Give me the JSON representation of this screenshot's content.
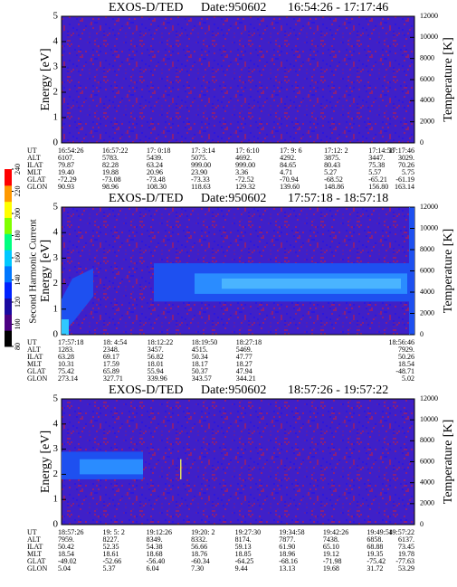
{
  "chart_data": [
    {
      "type": "spectrogram",
      "title": "EXOS-D/TED",
      "date": "Date:950602",
      "time_range": "16:54:26 - 17:17:46",
      "ylabel": "Energy [eV]",
      "y2label": "Temperature [K]",
      "ylim": [
        0,
        5
      ],
      "yticks": [
        0,
        1,
        2,
        3,
        4,
        5
      ],
      "y2lim": [
        0,
        12000
      ],
      "y2ticks": [
        0,
        2000,
        4000,
        6000,
        8000,
        10000,
        12000
      ],
      "table": {
        "row_labels": [
          "UT",
          "ALT",
          "ILAT",
          "MLT",
          "GLAT",
          "GLON"
        ],
        "rows": [
          [
            "16:54:26",
            "16:57:22",
            "17: 0:18",
            "17: 3:14",
            "17: 6:10",
            "17: 9: 6",
            "17:12: 2",
            "17:14:58",
            "17:17:46"
          ],
          [
            "6107.",
            "5783.",
            "5439.",
            "5075.",
            "4692.",
            "4292.",
            "3875.",
            "3447.",
            "3029."
          ],
          [
            "79.87",
            "82.28",
            "63.24",
            "999.00",
            "999.00",
            "84.65",
            "80.43",
            "75.38",
            "70.26"
          ],
          [
            "19.40",
            "19.88",
            "20.96",
            "23.90",
            "3.36",
            "4.71",
            "5.27",
            "5.57",
            "5.75"
          ],
          [
            "-72.29",
            "-73.08",
            "-73.48",
            "-73.33",
            "-72.52",
            "-70.94",
            "-68.52",
            "-65.21",
            "-61.19"
          ],
          [
            "90.93",
            "98.96",
            "108.30",
            "118.63",
            "129.32",
            "139.60",
            "148.86",
            "156.80",
            "163.14"
          ]
        ]
      }
    },
    {
      "type": "spectrogram",
      "title": "EXOS-D/TED",
      "date": "Date:950602",
      "time_range": "17:57:18 - 18:57:18",
      "ylabel": "Energy [eV]",
      "y2label": "Temperature [K]",
      "ylim": [
        0,
        5
      ],
      "yticks": [
        0,
        1,
        2,
        3,
        4,
        5
      ],
      "y2lim": [
        0,
        12000
      ],
      "y2ticks": [
        0,
        2000,
        4000,
        6000,
        8000,
        10000,
        12000
      ],
      "table": {
        "row_labels": [
          "UT",
          "ALT",
          "ILAT",
          "MLT",
          "GLAT",
          "GLON"
        ],
        "rows": [
          [
            "17:57:18",
            "18: 4:54",
            "18:12:22",
            "18:19:50",
            "18:27:18",
            "18:56:46"
          ],
          [
            "1283.",
            "2348.",
            "3457.",
            "4515.",
            "5469.",
            "7929."
          ],
          [
            "63.28",
            "69.17",
            "56.82",
            "50.34",
            "47.77",
            "50.26"
          ],
          [
            "10.31",
            "17.59",
            "18.01",
            "18.17",
            "18.27",
            "18.54"
          ],
          [
            "75.42",
            "65.89",
            "55.94",
            "50.37",
            "47.94",
            "-48.71"
          ],
          [
            "273.14",
            "327.71",
            "339.96",
            "343.57",
            "344.21",
            "5.02"
          ]
        ]
      }
    },
    {
      "type": "spectrogram",
      "title": "EXOS-D/TED",
      "date": "Date:950602",
      "time_range": "18:57:26 - 19:57:22",
      "ylabel": "Energy [eV]",
      "y2label": "Temperature [K]",
      "ylim": [
        0,
        5
      ],
      "yticks": [
        0,
        1,
        2,
        3,
        4,
        5
      ],
      "y2lim": [
        0,
        12000
      ],
      "y2ticks": [
        0,
        2000,
        4000,
        6000,
        8000,
        10000,
        12000
      ],
      "table": {
        "row_labels": [
          "UT",
          "ALT",
          "ILAT",
          "MLT",
          "GLAT",
          "GLON"
        ],
        "rows": [
          [
            "18:57:26",
            "19: 5: 2",
            "19:12:26",
            "19:20: 2",
            "19:27:30",
            "19:34:58",
            "19:42:26",
            "19:49:54",
            "19:57:22"
          ],
          [
            "7959.",
            "8227.",
            "8349.",
            "8332.",
            "8174.",
            "7877.",
            "7438.",
            "6858.",
            "6137."
          ],
          [
            "50.42",
            "52.35",
            "54.38",
            "56.66",
            "59.13",
            "61.90",
            "65.10",
            "68.88",
            "73.45"
          ],
          [
            "18.54",
            "18.61",
            "18.68",
            "18.76",
            "18.85",
            "18.96",
            "19.12",
            "19.35",
            "19.78"
          ],
          [
            "-49.02",
            "-52.66",
            "-56.40",
            "-60.34",
            "-64.25",
            "-68.16",
            "-71.98",
            "-75.42",
            "-77.63"
          ],
          [
            "5.04",
            "5.37",
            "6.04",
            "7.30",
            "9.44",
            "13.13",
            "19.68",
            "31.72",
            "53.29"
          ]
        ]
      }
    }
  ],
  "colorbar": {
    "label": "Second Harmonic Current",
    "lim": [
      80,
      240
    ],
    "ticks": [
      80,
      100,
      120,
      140,
      160,
      180,
      200,
      220,
      240
    ],
    "colors": [
      "#000000",
      "#4b0082",
      "#1a0aa0",
      "#0022ff",
      "#0077ff",
      "#00c8ff",
      "#00ff80",
      "#80ff00",
      "#ffff00",
      "#ff9900",
      "#ff0000"
    ]
  }
}
